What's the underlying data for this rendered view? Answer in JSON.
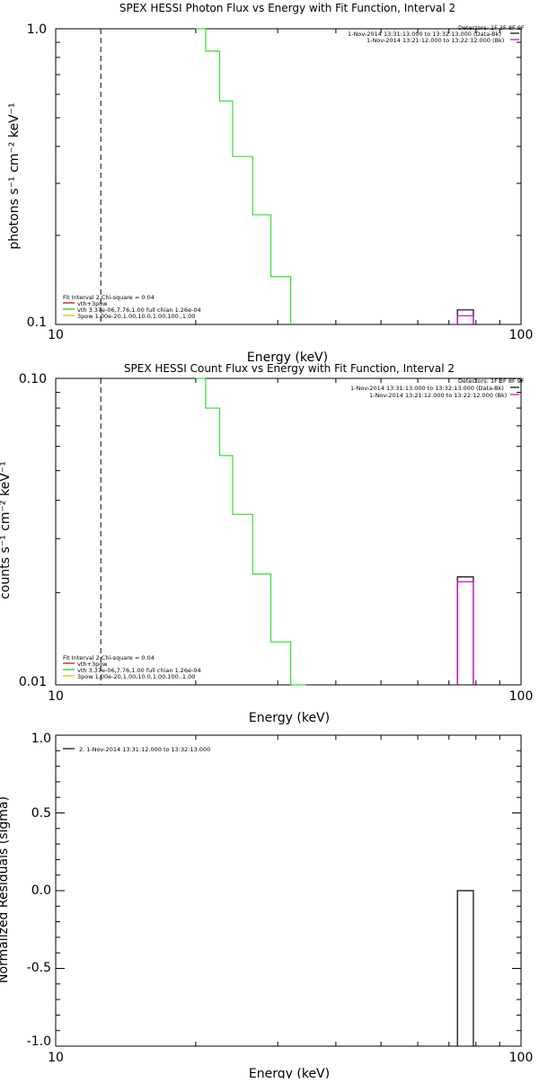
{
  "chart_data": [
    {
      "type": "line",
      "title": "SPEX HESSI Photon Flux vs Energy with Fit Function, Interval 2",
      "xlabel": "Energy (keV)",
      "ylabel": "photons s⁻¹ cm⁻² keV⁻¹",
      "xscale": "log",
      "yscale": "log",
      "xlim": [
        10,
        100
      ],
      "ylim": [
        0.1,
        1.0
      ],
      "xticks": [
        "10",
        "100"
      ],
      "yticks": [
        "0.1",
        "1.0"
      ],
      "vline_x": 12.5,
      "legend_right": {
        "header": "Detectors: 1F 3F 8F 9F",
        "items": [
          {
            "text": "1-Nov-2014 13:31:13.000 to 13:32:13.000 (Data-Bk)",
            "color": "#000000"
          },
          {
            "text": "1-Nov-2014 13:21:12.000 to 13:22:12.000 (Bk)",
            "color": "#cc00cc"
          }
        ]
      },
      "legend_left": {
        "header": "Fit Interval 2   Chi-square = 0.04",
        "items": [
          {
            "text": "vth+3pow",
            "color": "#cc0000"
          },
          {
            "text": "vth 3.37e-06,7.76,1.00  full chian 1.26e-04",
            "color": "#00cc00"
          },
          {
            "text": "3pow 1.00e-20,1.00,10.0,1.00,100.,1.00",
            "color": "#e6b800"
          }
        ]
      },
      "series": [
        {
          "name": "vth",
          "color": "#33dd33",
          "edges": [
            20.0,
            21.0,
            22.5,
            24.0,
            26.5,
            29.0,
            32.0
          ],
          "values": [
            1.0,
            0.84,
            0.57,
            0.37,
            0.235,
            0.145
          ]
        },
        {
          "name": "Data-Bk",
          "color": "#000000",
          "edges": [
            73.0,
            79.0
          ],
          "values": [
            0.112
          ]
        },
        {
          "name": "Bk",
          "color": "#cc00cc",
          "edges": [
            73.0,
            79.0
          ],
          "values": [
            0.107
          ]
        }
      ]
    },
    {
      "type": "line",
      "title": "SPEX HESSI Count Flux vs Energy with Fit Function, Interval 2",
      "xlabel": "Energy (keV)",
      "ylabel": "counts s⁻¹ cm⁻² keV⁻¹",
      "xscale": "log",
      "yscale": "log",
      "xlim": [
        10,
        100
      ],
      "ylim": [
        0.01,
        0.1
      ],
      "xticks": [
        "10",
        "100"
      ],
      "yticks": [
        "0.01",
        "0.10"
      ],
      "vline_x": 12.5,
      "legend_right": {
        "header": "Detectors: 1F 3F 8F 9F",
        "items": [
          {
            "text": "1-Nov-2014 13:31:13.000 to 13:32:13.000 (Data-Bk)",
            "color": "#000000"
          },
          {
            "text": "1-Nov-2014 13:21:12.000 to 13:22:12.000 (Bk)",
            "color": "#cc00cc"
          }
        ]
      },
      "legend_left": {
        "header": "Fit Interval 2   Chi-square = 0.04",
        "items": [
          {
            "text": "vth+3pow",
            "color": "#cc0000"
          },
          {
            "text": "vth 3.37e-06,7.76,1.00  full chian 1.26e-04",
            "color": "#00cc00"
          },
          {
            "text": "3pow 1.00e-20,1.00,10.0,1.00,100.,1.00",
            "color": "#e6b800"
          }
        ]
      },
      "series": [
        {
          "name": "vth",
          "color": "#33dd33",
          "edges": [
            20.0,
            21.0,
            22.5,
            24.0,
            26.5,
            29.0,
            32.0,
            34.5
          ],
          "values": [
            0.1,
            0.08,
            0.056,
            0.036,
            0.023,
            0.0138,
            0.01
          ]
        },
        {
          "name": "Data-Bk",
          "color": "#000000",
          "edges": [
            73.0,
            79.0
          ],
          "values": [
            0.0225
          ]
        },
        {
          "name": "Bk",
          "color": "#cc00cc",
          "edges": [
            73.0,
            79.0
          ],
          "values": [
            0.0217
          ]
        }
      ]
    },
    {
      "type": "line",
      "title": "",
      "xlabel": "Energy (keV)",
      "ylabel": "Normalized Residuals (sigma)",
      "xscale": "log",
      "yscale": "linear",
      "xlim": [
        10,
        100
      ],
      "ylim": [
        -1.0,
        1.0
      ],
      "xticks": [
        "10",
        "100"
      ],
      "yticks": [
        "-1.0",
        "-0.5",
        "0.0",
        "0.5",
        "1.0"
      ],
      "legend_right": null,
      "legend_left": {
        "header": "",
        "items": [
          {
            "text": "2.  1-Nov-2014 13:31:12.000 to 13:32:13.000",
            "color": "#000000"
          }
        ]
      },
      "series": [
        {
          "name": "residual",
          "color": "#000000",
          "edges": [
            73.0,
            79.0
          ],
          "values": [
            0.0
          ],
          "drop_to_bottom": true
        }
      ]
    }
  ]
}
